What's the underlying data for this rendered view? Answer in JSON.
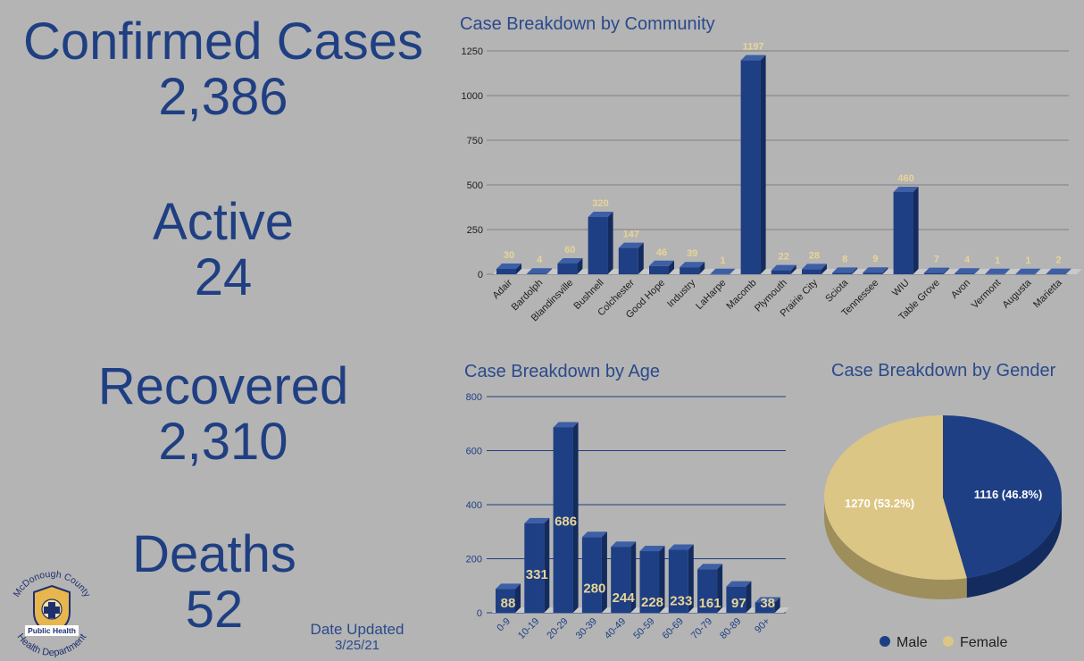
{
  "stats": {
    "confirmed": {
      "label": "Confirmed Cases",
      "value": "2,386"
    },
    "active": {
      "label": "Active",
      "value": "24"
    },
    "recovered": {
      "label": "Recovered",
      "value": "2,310"
    },
    "deaths": {
      "label": "Deaths",
      "value": "52"
    }
  },
  "updated": {
    "label": "Date Updated",
    "date": "3/25/21"
  },
  "logo": {
    "ring_text": "McDonough County · Health Department",
    "center_text": "Public Health"
  },
  "colors": {
    "bar": "#1e3f84",
    "label": "#e8d497",
    "female": "#dcc685",
    "male": "#1e3f84",
    "background": "#b4b4b4"
  },
  "chart_data": [
    {
      "type": "bar",
      "title": "Case Breakdown by Community",
      "categories": [
        "Adair",
        "Bardolph",
        "Blandinsville",
        "Bushnell",
        "Colchester",
        "Good Hope",
        "Industry",
        "LaHarpe",
        "Macomb",
        "Plymouth",
        "Prairie City",
        "Sciota",
        "Tennessee",
        "WIU",
        "Table Grove",
        "Avon",
        "Vermont",
        "Augusta",
        "Marietta"
      ],
      "values": [
        30,
        4,
        60,
        320,
        147,
        46,
        39,
        1,
        1197,
        22,
        28,
        8,
        9,
        460,
        7,
        4,
        1,
        1,
        2
      ],
      "ylim": [
        0,
        1250
      ],
      "yticks": [
        0,
        250,
        500,
        750,
        1000,
        1250
      ],
      "grid": true
    },
    {
      "type": "bar",
      "title": "Case Breakdown by Age",
      "categories": [
        "0-9",
        "10-19",
        "20-29",
        "30-39",
        "40-49",
        "50-59",
        "60-69",
        "70-79",
        "80-89",
        "90+"
      ],
      "values": [
        88,
        331,
        686,
        280,
        244,
        228,
        233,
        161,
        97,
        38
      ],
      "ylim": [
        0,
        800
      ],
      "yticks": [
        0,
        200,
        400,
        600,
        800
      ],
      "grid": true
    },
    {
      "type": "pie",
      "title": "Case Breakdown by Gender",
      "slices": [
        {
          "label": "Male",
          "value": 1116,
          "percent": 46.8,
          "text": "1116 (46.8%)"
        },
        {
          "label": "Female",
          "value": 1270,
          "percent": 53.2,
          "text": "1270 (53.2%)"
        }
      ],
      "legend": "bottom"
    }
  ]
}
